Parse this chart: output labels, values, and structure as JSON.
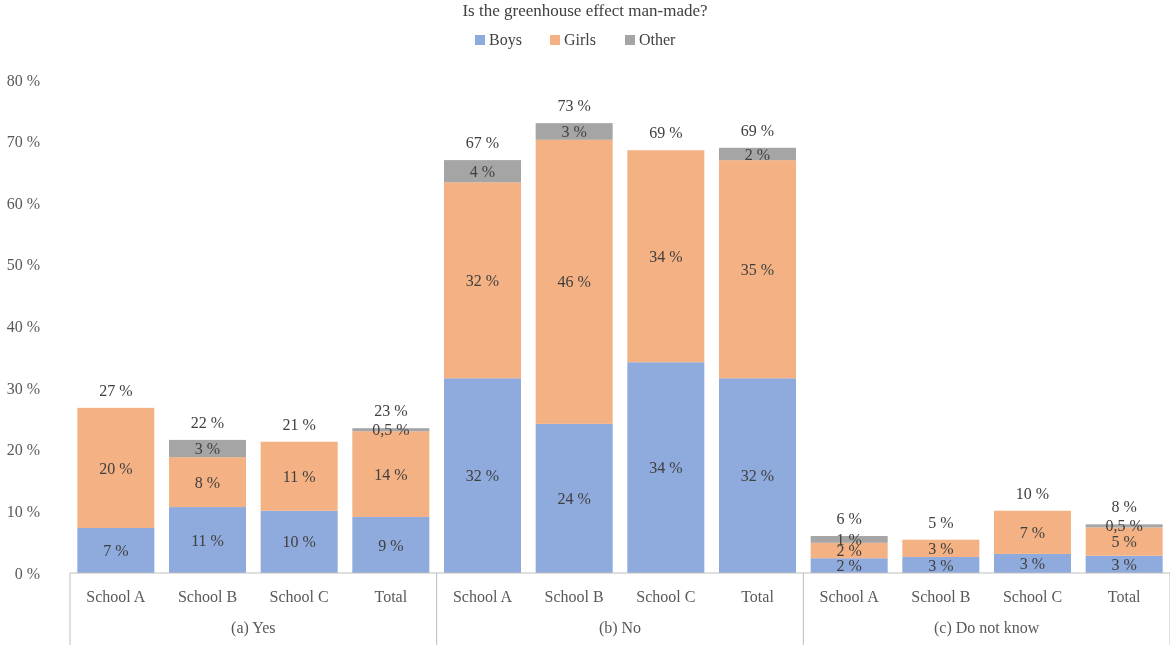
{
  "chart_data": {
    "type": "bar",
    "stacked": true,
    "title": "Is the greenhouse effect man-made?",
    "categories": [
      "School A",
      "School B",
      "School C",
      "Total",
      "School A",
      "School B",
      "School C",
      "Total",
      "School A",
      "School B",
      "School C",
      "Total"
    ],
    "annotations": [
      "(a) Yes",
      "(b) No",
      "(c) Do not know"
    ],
    "series": [
      {
        "name": "Boys",
        "color": "#8faadc",
        "values": [
          7.3,
          10.7,
          10.1,
          9.1,
          31.6,
          24.2,
          34.2,
          31.6,
          2.4,
          2.6,
          3.1,
          2.8
        ],
        "value_labels": [
          "7 %",
          "11 %",
          "10 %",
          "9 %",
          "32 %",
          "24 %",
          "34 %",
          "32 %",
          "2 %",
          "3 %",
          "3 %",
          "3 %"
        ]
      },
      {
        "name": "Girls",
        "color": "#f4b183",
        "values": [
          19.5,
          8.1,
          11.2,
          13.9,
          31.8,
          46.1,
          34.4,
          35.4,
          2.5,
          2.8,
          7.0,
          4.6
        ],
        "value_labels": [
          "20 %",
          "8 %",
          "11 %",
          "14 %",
          "32 %",
          "46 %",
          "34 %",
          "35 %",
          "2 %",
          "3 %",
          "7 %",
          "5 %"
        ]
      },
      {
        "name": "Other",
        "color": "#a5a5a5",
        "values": [
          null,
          2.8,
          null,
          0.5,
          3.6,
          2.7,
          null,
          2.0,
          1.1,
          null,
          null,
          0.5
        ],
        "value_labels": [
          null,
          "3 %",
          null,
          "0,5 %",
          "4 %",
          "3 %",
          null,
          "2 %",
          "1 %",
          null,
          null,
          "0,5 %"
        ]
      }
    ],
    "totals": [
      "27 %",
      "22 %",
      "21 %",
      "23 %",
      "67 %",
      "73 %",
      "69 %",
      "69 %",
      "6 %",
      "5 %",
      "10 %",
      "8 %"
    ],
    "ylim": [
      0,
      80
    ],
    "yticks": [
      {
        "value": 0,
        "label": "0 %"
      },
      {
        "value": 10,
        "label": "10 %"
      },
      {
        "value": 20,
        "label": "20 %"
      },
      {
        "value": 30,
        "label": "30 %"
      },
      {
        "value": 40,
        "label": "40 %"
      },
      {
        "value": 50,
        "label": "50 %"
      },
      {
        "value": 60,
        "label": "60 %"
      },
      {
        "value": 70,
        "label": "70 %"
      },
      {
        "value": 80,
        "label": "80 %"
      }
    ],
    "legend": "top",
    "grid": false
  }
}
